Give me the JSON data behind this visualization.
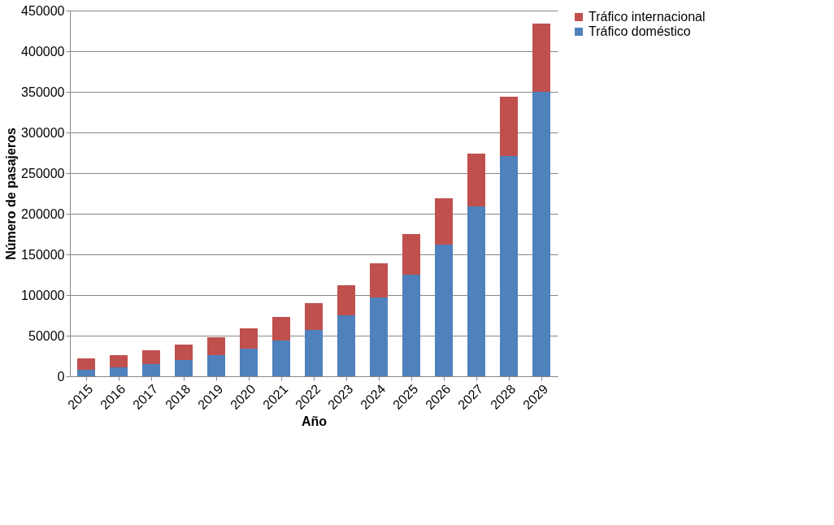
{
  "chart_data": {
    "type": "bar",
    "stacked": true,
    "xlabel": "Año",
    "ylabel": "Número de pasajeros",
    "categories": [
      "2015",
      "2016",
      "2017",
      "2018",
      "2019",
      "2020",
      "2021",
      "2022",
      "2023",
      "2024",
      "2025",
      "2026",
      "2027",
      "2028",
      "2029"
    ],
    "series": [
      {
        "name": "Tráfico doméstico",
        "color": "#4f81bd",
        "values": [
          8000,
          11000,
          15000,
          20000,
          26000,
          34000,
          44000,
          57000,
          75000,
          97000,
          125000,
          162000,
          209000,
          271000,
          350000
        ]
      },
      {
        "name": "Tráfico internacional",
        "color": "#c0504d",
        "values": [
          14000,
          15000,
          17000,
          19000,
          22000,
          25000,
          29000,
          33000,
          37000,
          42000,
          50000,
          57000,
          65000,
          73000,
          84000
        ]
      }
    ],
    "ylim": [
      0,
      450000
    ],
    "yticks": [
      0,
      50000,
      100000,
      150000,
      200000,
      250000,
      300000,
      350000,
      400000,
      450000
    ],
    "grid": "y",
    "legend": "right"
  }
}
